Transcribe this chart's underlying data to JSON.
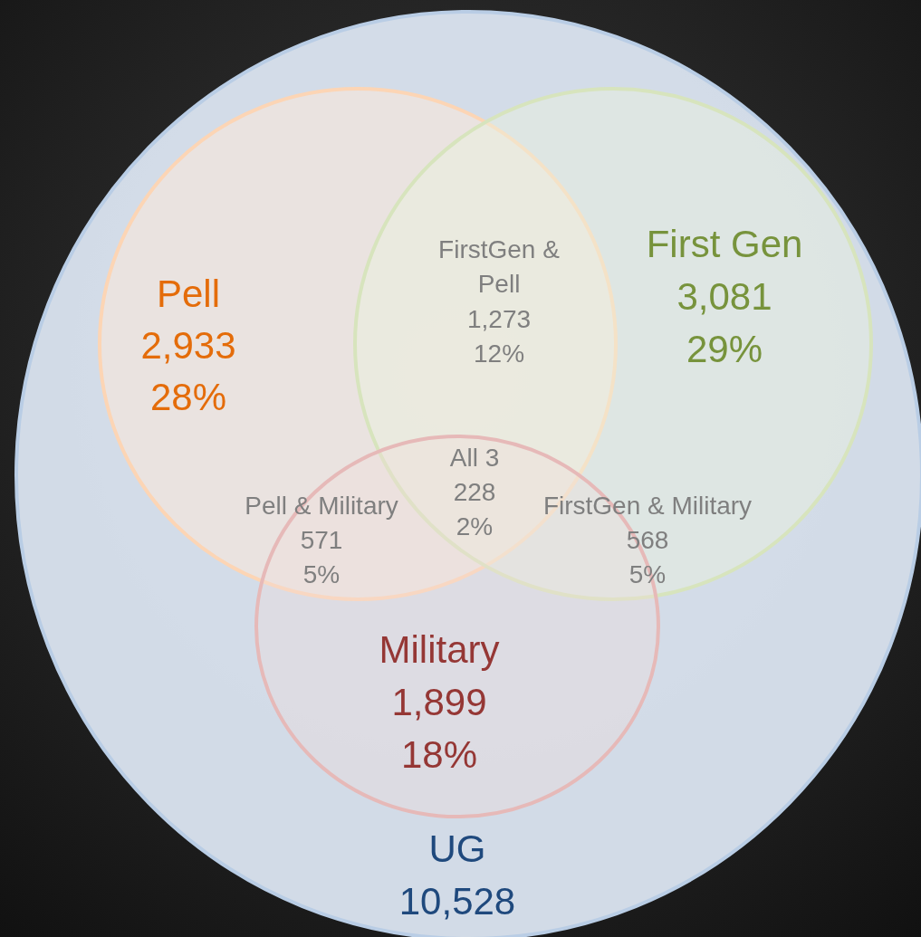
{
  "chart_data": {
    "type": "other",
    "categories": [
      "UG",
      "Pell",
      "First Gen",
      "Military",
      "FirstGen & Pell",
      "Pell & Military",
      "FirstGen & Military",
      "All 3"
    ],
    "colors": [
      "#1f497d",
      "#e46c0a",
      "#77933c",
      "#953735",
      "#7f7f7f",
      "#7f7f7f",
      "#7f7f7f",
      "#7f7f7f"
    ],
    "series": [
      {
        "colors": [
          "#dce6f2",
          "#fde9d9",
          "#ebf1de",
          "#f2dcdb",
          null,
          null,
          null,
          null
        ],
        "values": [
          10528,
          2933,
          3081,
          1899,
          1273,
          571,
          568,
          228
        ],
        "value_labels": [
          "10,528",
          "2,933",
          "3,081",
          "1,899",
          "1,273",
          "571",
          "568",
          "228"
        ]
      },
      {
        "values": [
          null,
          28,
          29,
          18,
          12,
          5,
          5,
          2
        ],
        "value_labels": [
          null,
          "28%",
          "29%",
          "18%",
          "12%",
          "5%",
          "5%",
          "2%"
        ]
      }
    ]
  }
}
